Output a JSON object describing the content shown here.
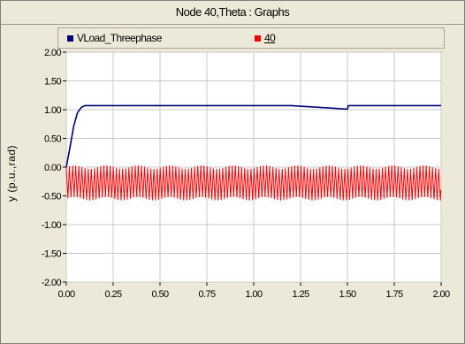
{
  "window": {
    "title": "Node 40,Theta : Graphs"
  },
  "legend": [
    {
      "label": "VLoad_Threephase",
      "color": "#00007f",
      "underline": false
    },
    {
      "label": "40",
      "color": "#ff0000",
      "underline": true
    }
  ],
  "chart_data": {
    "type": "line",
    "xlabel": "",
    "ylabel": "y (p.u.,rad)",
    "xlim": [
      0,
      2
    ],
    "ylim": [
      -2,
      2
    ],
    "xticks": [
      "0.00",
      "0.25",
      "0.50",
      "0.75",
      "1.00",
      "1.25",
      "1.50",
      "1.75",
      "2.00"
    ],
    "yticks": [
      "2.00",
      "1.50",
      "1.00",
      "0.50",
      "0.00",
      "-0.50",
      "-1.00",
      "-1.50",
      "-2.00"
    ],
    "grid": true,
    "legend_position": "top",
    "series": [
      {
        "name": "VLoad_Threephase",
        "color": "#00007f",
        "x": [
          0.0,
          0.02,
          0.04,
          0.06,
          0.08,
          0.1,
          0.12,
          0.15,
          0.5,
          1.0,
          1.2,
          1.205,
          1.3,
          1.4,
          1.5,
          1.505,
          1.75,
          2.0
        ],
        "y": [
          0.0,
          0.35,
          0.72,
          0.95,
          1.04,
          1.07,
          1.07,
          1.07,
          1.07,
          1.07,
          1.07,
          0.98,
          1.0,
          1.0,
          1.01,
          1.07,
          1.07,
          1.07
        ],
        "oscillation": {
          "x_range": [
            1.2,
            1.5
          ],
          "center": 1.0,
          "amplitude": 0.04,
          "period": 0.0167
        }
      },
      {
        "name": "40",
        "color": "#ff0000",
        "description_range": {
          "ymin": -0.55,
          "ymax": 0.0
        },
        "period": 0.0167,
        "x_range": [
          0.0,
          2.0
        ]
      }
    ]
  }
}
